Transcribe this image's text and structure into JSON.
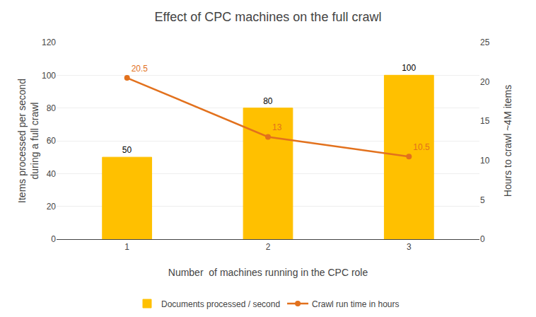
{
  "chart_data": {
    "type": "bar",
    "title": "Effect of CPC machines on the full crawl",
    "x": [
      1,
      2,
      3
    ],
    "xlim": [
      0.5,
      3.5
    ],
    "xticks": [
      1,
      2,
      3
    ],
    "xlabel": "Number  of machines running in the CPC role",
    "ylabel": "Items processed per second\nduring a full crawl",
    "y2label": "Hours to crawl ~4M items",
    "ylim": [
      0,
      120
    ],
    "yticks": [
      0,
      20,
      40,
      60,
      80,
      100,
      120
    ],
    "y2lim": [
      0,
      25
    ],
    "y2ticks": [
      0,
      5,
      10,
      15,
      20,
      25
    ],
    "grid": true,
    "legend": "bottom",
    "data_labels": true,
    "series": [
      {
        "name": "Documents processed / second",
        "type": "bar",
        "color": "#FFC000",
        "values": [
          50,
          80,
          100
        ]
      },
      {
        "name": "Crawl run time in hours",
        "type": "line",
        "axis": "y2",
        "color": "#E2711D",
        "marker": "circle",
        "values": [
          20.5,
          13,
          10.5
        ]
      }
    ]
  }
}
